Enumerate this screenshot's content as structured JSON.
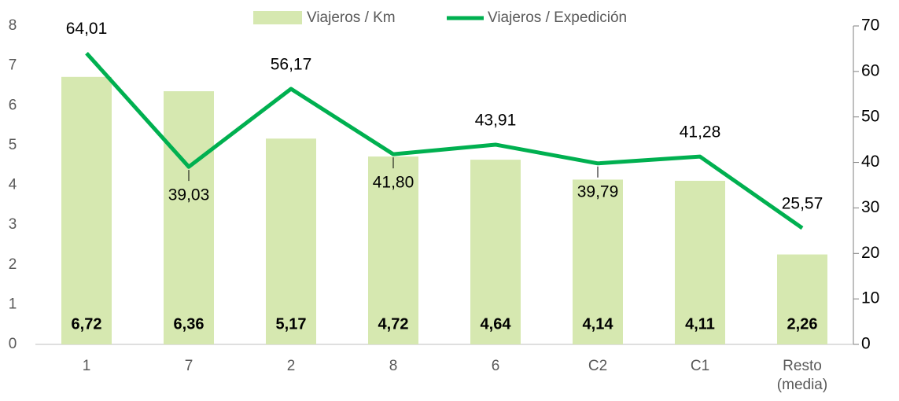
{
  "chart_data": {
    "type": "bar_line",
    "categories": [
      "1",
      "7",
      "2",
      "8",
      "6",
      "C2",
      "C1",
      "Resto (media)"
    ],
    "series": [
      {
        "name": "Viajeros / Km",
        "type": "bar",
        "color": "#d6e8b0",
        "axis": "y",
        "values": [
          6.72,
          6.36,
          5.17,
          4.72,
          4.64,
          4.14,
          4.11,
          2.26
        ],
        "value_labels": [
          "6,72",
          "6,36",
          "5,17",
          "4,72",
          "4,64",
          "4,14",
          "4,11",
          "2,26"
        ]
      },
      {
        "name": "Viajeros / Expedición",
        "type": "line",
        "color": "#00b050",
        "axis": "y2",
        "values": [
          64.01,
          39.03,
          56.17,
          41.8,
          43.91,
          39.79,
          41.28,
          25.57
        ],
        "value_labels": [
          "64,01",
          "39,03",
          "56,17",
          "41,80",
          "43,91",
          "39,79",
          "41,28",
          "25,57"
        ]
      }
    ],
    "ylim": [
      0,
      8
    ],
    "yticks": [
      0,
      1,
      2,
      3,
      4,
      5,
      6,
      7,
      8
    ],
    "y2lim": [
      0,
      70
    ],
    "y2ticks": [
      0,
      10,
      20,
      30,
      40,
      50,
      60,
      70
    ],
    "legend": "top"
  }
}
